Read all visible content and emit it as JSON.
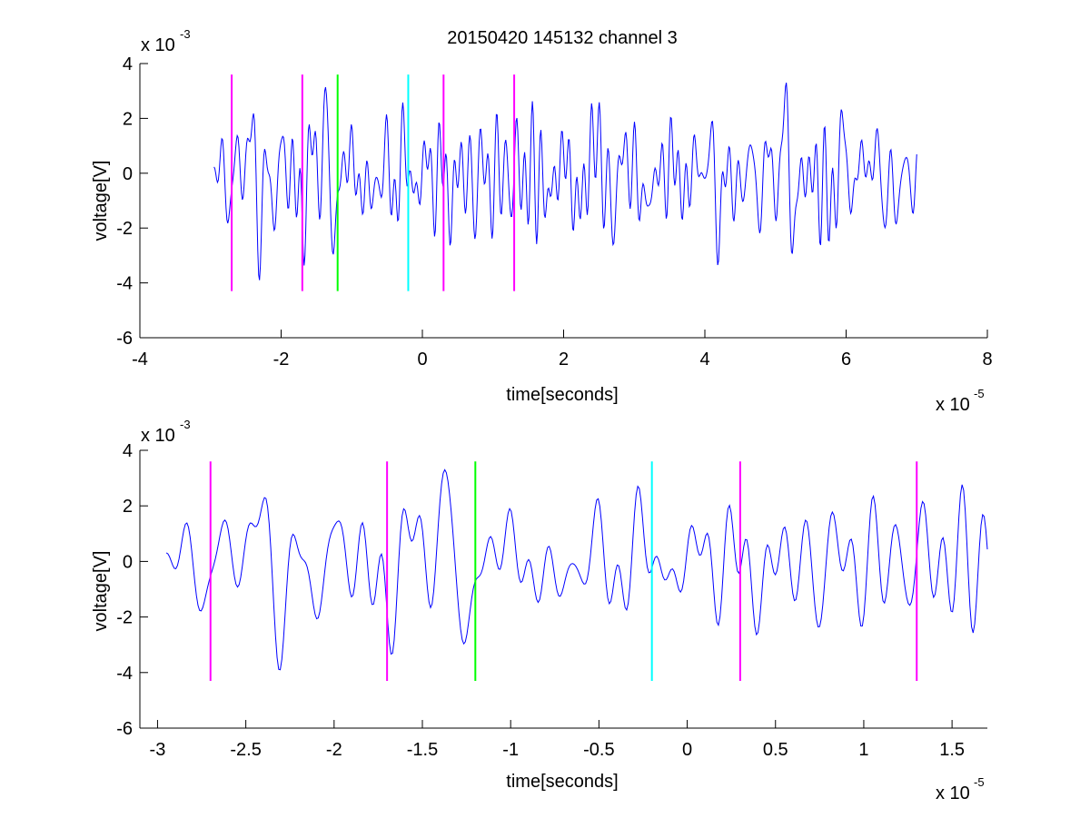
{
  "chart_data": [
    {
      "type": "line",
      "title": "20150420 145132 channel 3",
      "xlabel": "time[seconds]",
      "ylabel": "voltage[V]",
      "x_multiplier": "x 10",
      "x_exponent": "-5",
      "y_multiplier": "x 10",
      "y_exponent": "-3",
      "xlim": [
        -4,
        8
      ],
      "ylim": [
        -6,
        4
      ],
      "x_ticks": [
        -4,
        -2,
        0,
        2,
        4,
        6,
        8
      ],
      "x_tick_labels": [
        "-4",
        "-2",
        "0",
        "2",
        "4",
        "6",
        "8"
      ],
      "y_ticks": [
        -6,
        -4,
        -2,
        0,
        2,
        4
      ],
      "y_tick_labels": [
        "-6",
        "-4",
        "-2",
        "0",
        "2",
        "4"
      ],
      "grid": false,
      "signal": {
        "color": "#0000ff",
        "x_range": [
          -2.95,
          7.0
        ],
        "points": 820,
        "y_envelope": [
          -3.9,
          3.3
        ],
        "seed": 7
      },
      "markers": [
        {
          "x": -2.7,
          "color": "#ff00ff"
        },
        {
          "x": -1.7,
          "color": "#ff00ff"
        },
        {
          "x": -1.2,
          "color": "#00ff00"
        },
        {
          "x": -0.2,
          "color": "#00ffff"
        },
        {
          "x": 0.3,
          "color": "#ff00ff"
        },
        {
          "x": 1.3,
          "color": "#ff00ff"
        }
      ],
      "marker_y_range": [
        -4.3,
        3.6
      ]
    },
    {
      "type": "line",
      "title": "",
      "xlabel": "time[seconds]",
      "ylabel": "voltage[V]",
      "x_multiplier": "x 10",
      "x_exponent": "-5",
      "y_multiplier": "x 10",
      "y_exponent": "-3",
      "xlim": [
        -3.1,
        1.7
      ],
      "ylim": [
        -6,
        4
      ],
      "x_ticks": [
        -3,
        -2.5,
        -2,
        -1.5,
        -1,
        -0.5,
        0,
        0.5,
        1,
        1.5
      ],
      "x_tick_labels": [
        "-3",
        "-2.5",
        "-2",
        "-1.5",
        "-1",
        "-0.5",
        "0",
        "0.5",
        "1",
        "1.5"
      ],
      "y_ticks": [
        -6,
        -4,
        -2,
        0,
        2,
        4
      ],
      "y_tick_labels": [
        "-6",
        "-4",
        "-2",
        "0",
        "2",
        "4"
      ],
      "grid": false,
      "signal": {
        "color": "#0000ff",
        "x_range": [
          -2.95,
          1.7
        ],
        "points": 520,
        "y_envelope": [
          -3.9,
          3.3
        ],
        "seed": 7
      },
      "markers": [
        {
          "x": -2.7,
          "color": "#ff00ff"
        },
        {
          "x": -1.7,
          "color": "#ff00ff"
        },
        {
          "x": -1.2,
          "color": "#00ff00"
        },
        {
          "x": -0.2,
          "color": "#00ffff"
        },
        {
          "x": 0.3,
          "color": "#ff00ff"
        },
        {
          "x": 1.3,
          "color": "#ff00ff"
        }
      ],
      "marker_y_range": [
        -4.3,
        3.6
      ]
    }
  ]
}
